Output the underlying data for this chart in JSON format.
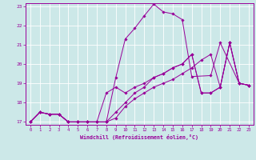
{
  "xlabel": "Windchill (Refroidissement éolien,°C)",
  "bg_color": "#cce8e8",
  "line_color": "#990099",
  "grid_color": "#ffffff",
  "xmin": 0,
  "xmax": 23,
  "ymin": 17,
  "ymax": 23,
  "curves": [
    [
      17.0,
      17.5,
      17.4,
      17.4,
      17.0,
      17.0,
      17.0,
      17.0,
      17.0,
      19.3,
      21.3,
      21.85,
      22.5,
      23.1,
      22.7,
      22.6,
      22.3,
      19.35,
      null,
      19.4,
      21.1,
      null,
      19.0,
      18.9
    ],
    [
      17.0,
      17.5,
      17.4,
      17.4,
      17.0,
      17.0,
      17.0,
      17.0,
      17.0,
      17.2,
      17.8,
      18.2,
      18.5,
      18.8,
      19.0,
      19.2,
      19.5,
      19.8,
      20.2,
      20.5,
      18.8,
      21.1,
      19.0,
      18.9
    ],
    [
      17.0,
      17.5,
      17.4,
      17.4,
      17.0,
      17.0,
      17.0,
      17.0,
      18.5,
      18.8,
      18.5,
      18.8,
      19.0,
      19.3,
      19.5,
      19.8,
      20.0,
      20.5,
      18.5,
      18.5,
      18.8,
      21.1,
      19.0,
      18.9
    ],
    [
      17.0,
      17.5,
      17.4,
      17.4,
      17.0,
      17.0,
      17.0,
      17.0,
      17.0,
      17.5,
      18.0,
      18.5,
      18.8,
      19.3,
      19.5,
      19.8,
      20.0,
      20.5,
      18.5,
      18.5,
      18.8,
      21.1,
      19.0,
      18.9
    ]
  ],
  "yticks": [
    17,
    18,
    19,
    20,
    21,
    22,
    23
  ],
  "xticks": [
    0,
    1,
    2,
    3,
    4,
    5,
    6,
    7,
    8,
    9,
    10,
    11,
    12,
    13,
    14,
    15,
    16,
    17,
    18,
    19,
    20,
    21,
    22,
    23
  ]
}
